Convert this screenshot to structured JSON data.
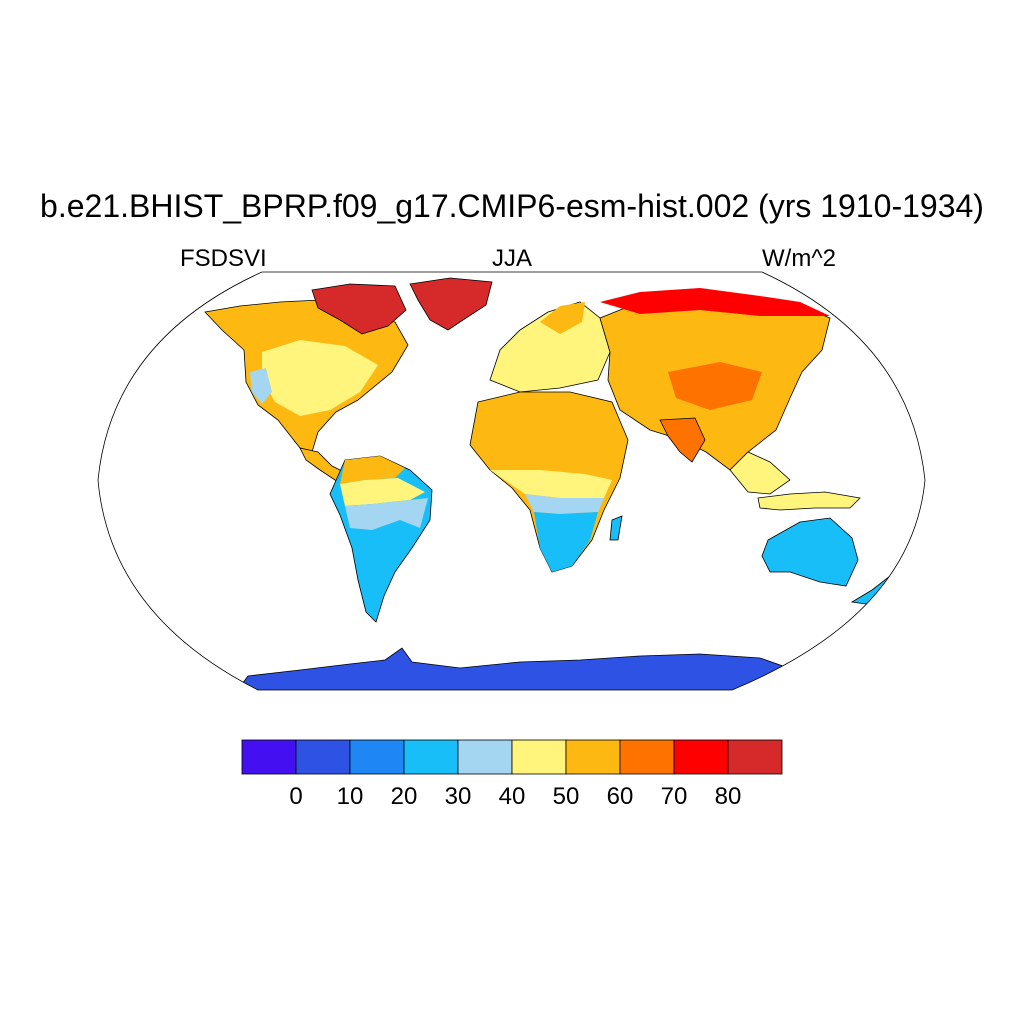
{
  "header": {
    "title": "b.e21.BHIST_BPRP.f09_g17.CMIP6-esm-hist.002 (yrs 1910-1934)",
    "variable": "FSDSVI",
    "season": "JJA",
    "units": "W/m^2"
  },
  "colorbar": {
    "colors": [
      "#4410F2",
      "#2D52E4",
      "#1E87F5",
      "#18BEF8",
      "#A4D5F1",
      "#FFF57C",
      "#FDB912",
      "#FE7300",
      "#FE0000",
      "#D62A2A"
    ],
    "tick_labels": [
      "0",
      "10",
      "20",
      "30",
      "40",
      "50",
      "60",
      "70",
      "80"
    ]
  },
  "colors": {
    "coast": "#000000",
    "ocean": "#ffffff",
    "border": "#000000"
  }
}
